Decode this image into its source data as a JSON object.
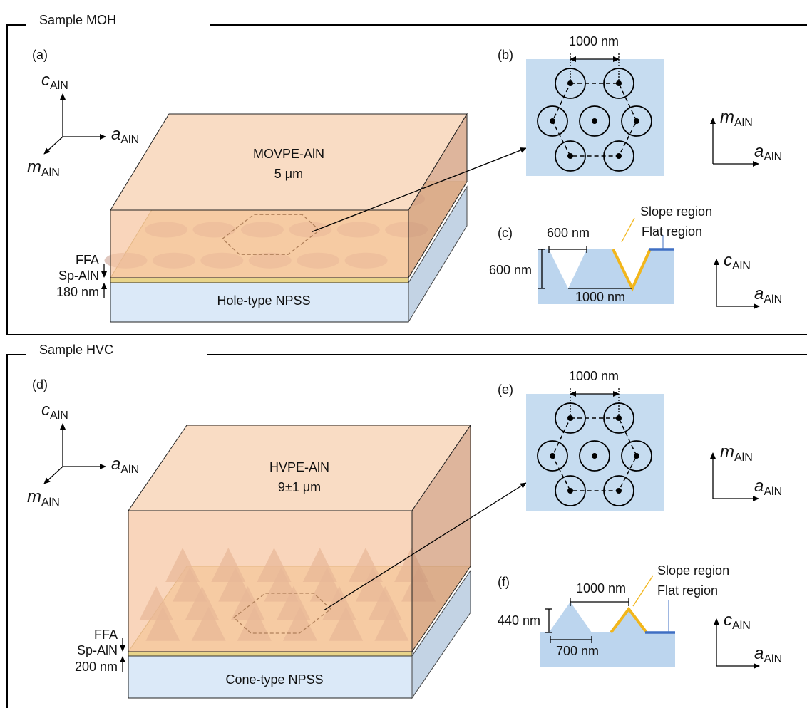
{
  "sections": [
    {
      "title": "Sample MOH",
      "structure": {
        "label": "(a)",
        "film": "MOVPE-AlN",
        "thickness": "5 μm",
        "substrate": "Hole-type NPSS",
        "ffa": "FFA",
        "sp": "Sp-AlN",
        "sp_thickness": "180 nm",
        "axes": {
          "c": {
            "symbol": "c",
            "sub": "AlN"
          },
          "a": {
            "symbol": "a",
            "sub": "AlN"
          },
          "m": {
            "symbol": "m",
            "sub": "AlN"
          }
        }
      },
      "plan": {
        "label": "(b)",
        "pitch": "1000 nm",
        "axes": {
          "m": {
            "symbol": "m",
            "sub": "AlN"
          },
          "a": {
            "symbol": "a",
            "sub": "AlN"
          }
        }
      },
      "cross": {
        "label": "(c)",
        "width": "600 nm",
        "depth": "600 nm",
        "pitch": "1000 nm",
        "slope": "Slope region",
        "flat": "Flat region",
        "axes": {
          "c": {
            "symbol": "c",
            "sub": "AlN"
          },
          "a": {
            "symbol": "a",
            "sub": "AlN"
          }
        }
      }
    },
    {
      "title": "Sample HVC",
      "structure": {
        "label": "(d)",
        "film": "HVPE-AlN",
        "thickness": "9±1 μm",
        "substrate": "Cone-type NPSS",
        "ffa": "FFA",
        "sp": "Sp-AlN",
        "sp_thickness": "200 nm",
        "axes": {
          "c": {
            "symbol": "c",
            "sub": "AlN"
          },
          "a": {
            "symbol": "a",
            "sub": "AlN"
          },
          "m": {
            "symbol": "m",
            "sub": "AlN"
          }
        }
      },
      "plan": {
        "label": "(e)",
        "pitch": "1000 nm",
        "axes": {
          "m": {
            "symbol": "m",
            "sub": "AlN"
          },
          "a": {
            "symbol": "a",
            "sub": "AlN"
          }
        }
      },
      "cross": {
        "label": "(f)",
        "pitch": "1000 nm",
        "depth": "440 nm",
        "width": "700 nm",
        "slope": "Slope region",
        "flat": "Flat region",
        "axes": {
          "c": {
            "symbol": "c",
            "sub": "AlN"
          },
          "a": {
            "symbol": "a",
            "sub": "AlN"
          }
        }
      }
    }
  ]
}
